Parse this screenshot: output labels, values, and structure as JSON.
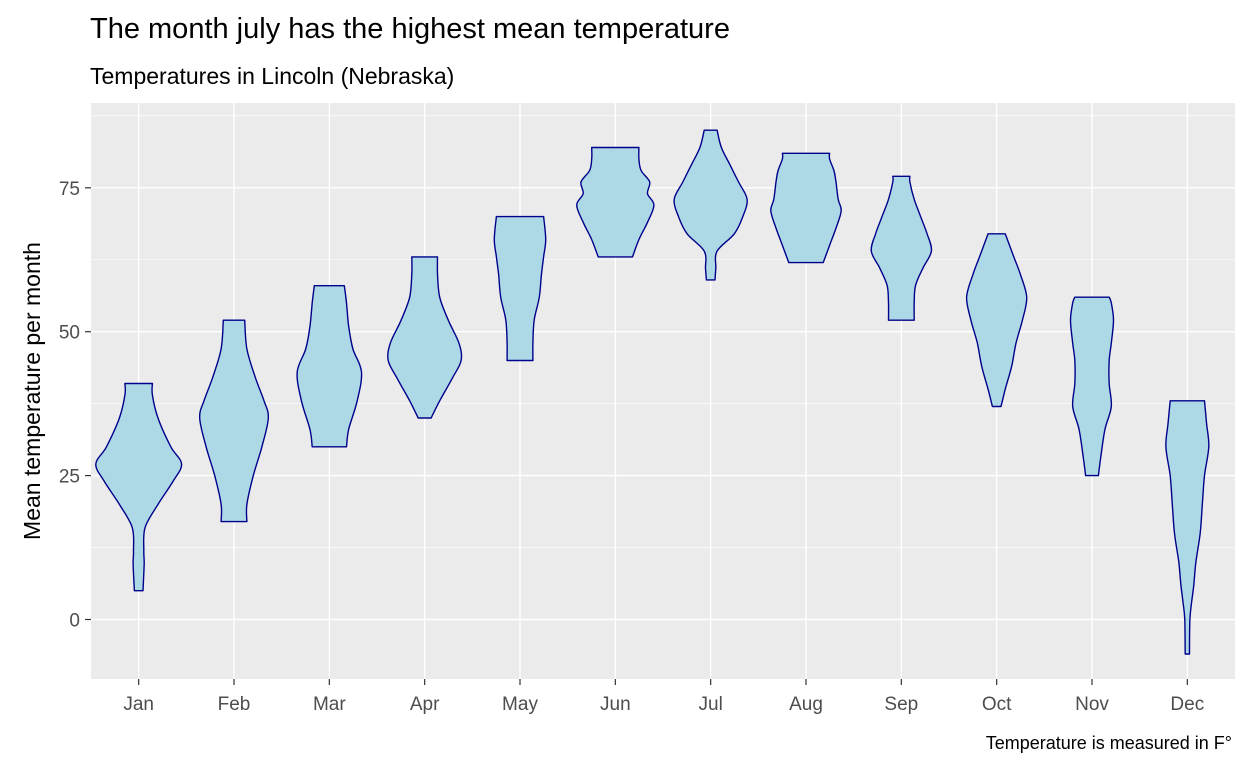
{
  "chart_data": {
    "type": "violin",
    "title": "The month july has the highest mean temperature",
    "subtitle": "Temperatures in Lincoln (Nebraska)",
    "xlabel": "",
    "ylabel": "Mean temperature per month",
    "caption": "Temperature is measured in F°",
    "ylim": [
      -10,
      88
    ],
    "yticks": [
      "0",
      "25",
      "50",
      "75"
    ],
    "grid": true,
    "colors": {
      "panel": "#ebebeb",
      "grid": "#ffffff",
      "fill": "#add8e6",
      "outline": "#00008b",
      "tick_text": "#4d4d4d"
    },
    "categories": [
      "Jan",
      "Feb",
      "Mar",
      "Apr",
      "May",
      "Jun",
      "Jul",
      "Aug",
      "Sep",
      "Oct",
      "Nov",
      "Dec"
    ],
    "violins": [
      {
        "month": "Jan",
        "min": 5,
        "max": 41,
        "profile": [
          [
            5,
            0.1
          ],
          [
            8,
            0.12
          ],
          [
            10,
            0.13
          ],
          [
            12,
            0.12
          ],
          [
            16,
            0.15
          ],
          [
            20,
            0.45
          ],
          [
            24,
            0.8
          ],
          [
            27,
            1.0
          ],
          [
            30,
            0.75
          ],
          [
            35,
            0.45
          ],
          [
            39,
            0.32
          ],
          [
            41,
            0.32
          ]
        ]
      },
      {
        "month": "Feb",
        "min": 17,
        "max": 52,
        "profile": [
          [
            17,
            0.3
          ],
          [
            20,
            0.3
          ],
          [
            25,
            0.45
          ],
          [
            30,
            0.65
          ],
          [
            35,
            0.8
          ],
          [
            38,
            0.7
          ],
          [
            42,
            0.5
          ],
          [
            47,
            0.3
          ],
          [
            52,
            0.25
          ]
        ]
      },
      {
        "month": "Mar",
        "min": 30,
        "max": 58,
        "profile": [
          [
            30,
            0.4
          ],
          [
            33,
            0.45
          ],
          [
            38,
            0.65
          ],
          [
            43,
            0.75
          ],
          [
            47,
            0.55
          ],
          [
            51,
            0.45
          ],
          [
            55,
            0.4
          ],
          [
            58,
            0.35
          ]
        ]
      },
      {
        "month": "Apr",
        "min": 35,
        "max": 63,
        "profile": [
          [
            35,
            0.15
          ],
          [
            38,
            0.35
          ],
          [
            42,
            0.65
          ],
          [
            45,
            0.85
          ],
          [
            48,
            0.8
          ],
          [
            52,
            0.55
          ],
          [
            56,
            0.35
          ],
          [
            60,
            0.3
          ],
          [
            63,
            0.3
          ]
        ]
      },
      {
        "month": "May",
        "min": 45,
        "max": 70,
        "profile": [
          [
            45,
            0.3
          ],
          [
            48,
            0.3
          ],
          [
            52,
            0.33
          ],
          [
            56,
            0.45
          ],
          [
            60,
            0.5
          ],
          [
            63,
            0.55
          ],
          [
            66,
            0.6
          ],
          [
            70,
            0.55
          ]
        ]
      },
      {
        "month": "Jun",
        "min": 63,
        "max": 82,
        "profile": [
          [
            63,
            0.4
          ],
          [
            66,
            0.55
          ],
          [
            69,
            0.75
          ],
          [
            72,
            0.9
          ],
          [
            74,
            0.75
          ],
          [
            76,
            0.8
          ],
          [
            78,
            0.6
          ],
          [
            80,
            0.55
          ],
          [
            82,
            0.55
          ]
        ]
      },
      {
        "month": "Jul",
        "min": 59,
        "max": 85,
        "profile": [
          [
            59,
            0.1
          ],
          [
            61,
            0.12
          ],
          [
            64,
            0.15
          ],
          [
            67,
            0.55
          ],
          [
            70,
            0.75
          ],
          [
            73,
            0.85
          ],
          [
            76,
            0.65
          ],
          [
            79,
            0.45
          ],
          [
            82,
            0.25
          ],
          [
            85,
            0.15
          ]
        ]
      },
      {
        "month": "Aug",
        "min": 62,
        "max": 81,
        "profile": [
          [
            62,
            0.4
          ],
          [
            65,
            0.55
          ],
          [
            68,
            0.7
          ],
          [
            71,
            0.82
          ],
          [
            73,
            0.75
          ],
          [
            76,
            0.7
          ],
          [
            78,
            0.65
          ],
          [
            80,
            0.55
          ],
          [
            81,
            0.55
          ]
        ]
      },
      {
        "month": "Sep",
        "min": 52,
        "max": 77,
        "profile": [
          [
            52,
            0.3
          ],
          [
            55,
            0.3
          ],
          [
            58,
            0.33
          ],
          [
            61,
            0.5
          ],
          [
            64,
            0.7
          ],
          [
            67,
            0.6
          ],
          [
            70,
            0.45
          ],
          [
            73,
            0.3
          ],
          [
            76,
            0.2
          ],
          [
            77,
            0.2
          ]
        ]
      },
      {
        "month": "Oct",
        "min": 37,
        "max": 67,
        "profile": [
          [
            37,
            0.1
          ],
          [
            40,
            0.2
          ],
          [
            44,
            0.35
          ],
          [
            48,
            0.45
          ],
          [
            52,
            0.6
          ],
          [
            56,
            0.7
          ],
          [
            60,
            0.55
          ],
          [
            63,
            0.4
          ],
          [
            66,
            0.25
          ],
          [
            67,
            0.2
          ]
        ]
      },
      {
        "month": "Nov",
        "min": 25,
        "max": 56,
        "profile": [
          [
            25,
            0.15
          ],
          [
            28,
            0.2
          ],
          [
            33,
            0.3
          ],
          [
            37,
            0.45
          ],
          [
            41,
            0.4
          ],
          [
            45,
            0.4
          ],
          [
            48,
            0.45
          ],
          [
            52,
            0.5
          ],
          [
            55,
            0.45
          ],
          [
            56,
            0.4
          ]
        ]
      },
      {
        "month": "Dec",
        "min": -6,
        "max": 38,
        "profile": [
          [
            -6,
            0.05
          ],
          [
            0,
            0.06
          ],
          [
            3,
            0.1
          ],
          [
            6,
            0.15
          ],
          [
            10,
            0.2
          ],
          [
            15,
            0.3
          ],
          [
            20,
            0.35
          ],
          [
            25,
            0.4
          ],
          [
            30,
            0.5
          ],
          [
            34,
            0.45
          ],
          [
            38,
            0.4
          ]
        ]
      }
    ]
  }
}
